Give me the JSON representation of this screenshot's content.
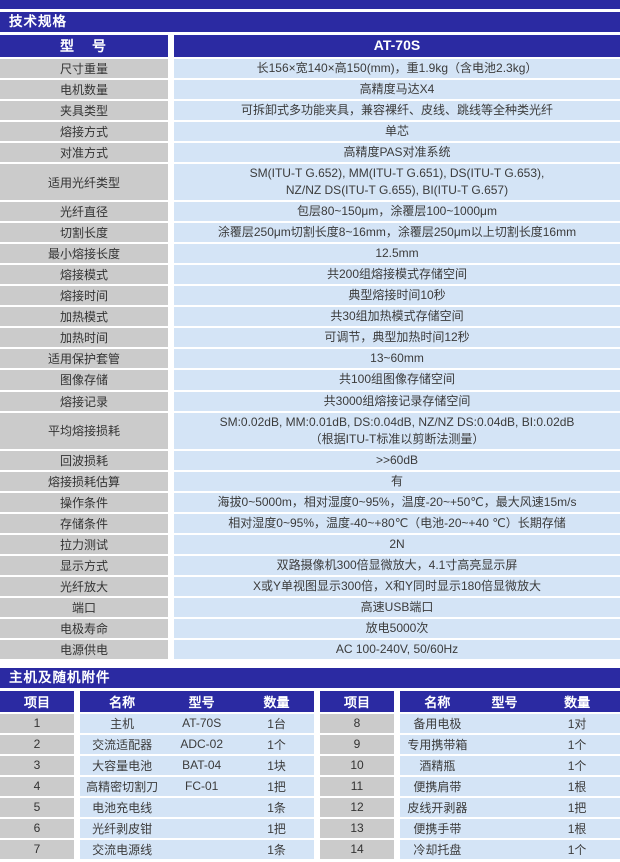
{
  "colors": {
    "navy": "#2b2aa2",
    "label_gray": "#cbcbcb",
    "value_blue": "#d4e4f6",
    "text_dark": "#3b3b3b",
    "gap_white": "#ffffff",
    "page_bg": "#e9eaec"
  },
  "spec_section": {
    "title": "技术规格",
    "model_row": {
      "label": "型　号",
      "value": "AT-70S"
    },
    "rows": [
      {
        "label": "尺寸重量",
        "value": "长156×宽140×高150(mm)，重1.9kg（含电池2.3kg）"
      },
      {
        "label": "电机数量",
        "value": "高精度马达X4"
      },
      {
        "label": "夹具类型",
        "value": "可拆卸式多功能夹具，兼容裸纤、皮线、跳线等全种类光纤"
      },
      {
        "label": "熔接方式",
        "value": "单芯"
      },
      {
        "label": "对准方式",
        "value": "高精度PAS对准系统"
      },
      {
        "label": "适用光纤类型",
        "value": "SM(ITU-T G.652), MM(ITU-T G.651), DS(ITU-T G.653),\nNZ/NZ DS(ITU-T G.655), BI(ITU-T G.657)"
      },
      {
        "label": "光纤直径",
        "value": "包层80~150μm，涂覆层100~1000μm"
      },
      {
        "label": "切割长度",
        "value": "涂覆层250μm切割长度8~16mm，涂覆层250μm以上切割长度16mm"
      },
      {
        "label": "最小熔接长度",
        "value": "12.5mm"
      },
      {
        "label": "熔接模式",
        "value": "共200组熔接模式存储空间"
      },
      {
        "label": "熔接时间",
        "value": "典型熔接时间10秒"
      },
      {
        "label": "加热模式",
        "value": "共30组加热模式存储空间"
      },
      {
        "label": "加热时间",
        "value": "可调节，典型加热时间12秒"
      },
      {
        "label": "适用保护套管",
        "value": "13~60mm"
      },
      {
        "label": "图像存储",
        "value": "共100组图像存储空间"
      },
      {
        "label": "熔接记录",
        "value": "共3000组熔接记录存储空间"
      },
      {
        "label": "平均熔接损耗",
        "value": "SM:0.02dB, MM:0.01dB, DS:0.04dB, NZ/NZ DS:0.04dB, BI:0.02dB\n（根据ITU-T标准以剪断法测量）"
      },
      {
        "label": "回波损耗",
        "value": ">>60dB"
      },
      {
        "label": "熔接损耗估算",
        "value": "有"
      },
      {
        "label": "操作条件",
        "value": "海拔0~5000m，相对湿度0~95%，温度-20~+50℃，最大风速15m/s"
      },
      {
        "label": "存储条件",
        "value": "相对湿度0~95%，温度-40~+80℃（电池-20~+40 ℃）长期存储"
      },
      {
        "label": "拉力测试",
        "value": "2N"
      },
      {
        "label": "显示方式",
        "value": "双路摄像机300倍显微放大，4.1寸高亮显示屏"
      },
      {
        "label": "光纤放大",
        "value": "X或Y单视图显示300倍，X和Y同时显示180倍显微放大"
      },
      {
        "label": "端口",
        "value": "高速USB端口"
      },
      {
        "label": "电极寿命",
        "value": "放电5000次"
      },
      {
        "label": "电源供电",
        "value": "AC 100-240V, 50/60Hz"
      }
    ]
  },
  "accessories": {
    "title": "主机及随机附件",
    "columns": [
      "项目",
      "名称",
      "型号",
      "数量"
    ],
    "rows": [
      {
        "l": [
          "1",
          "主机",
          "AT-70S",
          "1台"
        ],
        "r": [
          "8",
          "备用电极",
          "",
          "1对"
        ]
      },
      {
        "l": [
          "2",
          "交流适配器",
          "ADC-02",
          "1个"
        ],
        "r": [
          "9",
          "专用携带箱",
          "",
          "1个"
        ]
      },
      {
        "l": [
          "3",
          "大容量电池",
          "BAT-04",
          "1块"
        ],
        "r": [
          "10",
          "酒精瓶",
          "",
          "1个"
        ]
      },
      {
        "l": [
          "4",
          "高精密切割刀",
          "FC-01",
          "1把"
        ],
        "r": [
          "11",
          "便携肩带",
          "",
          "1根"
        ]
      },
      {
        "l": [
          "5",
          "电池充电线",
          "",
          "1条"
        ],
        "r": [
          "12",
          "皮线开剥器",
          "",
          "1把"
        ]
      },
      {
        "l": [
          "6",
          "光纤剥皮钳",
          "",
          "1把"
        ],
        "r": [
          "13",
          "便携手带",
          "",
          "1根"
        ]
      },
      {
        "l": [
          "7",
          "交流电源线",
          "",
          "1条"
        ],
        "r": [
          "14",
          "冷却托盘",
          "",
          "1个"
        ]
      }
    ]
  }
}
